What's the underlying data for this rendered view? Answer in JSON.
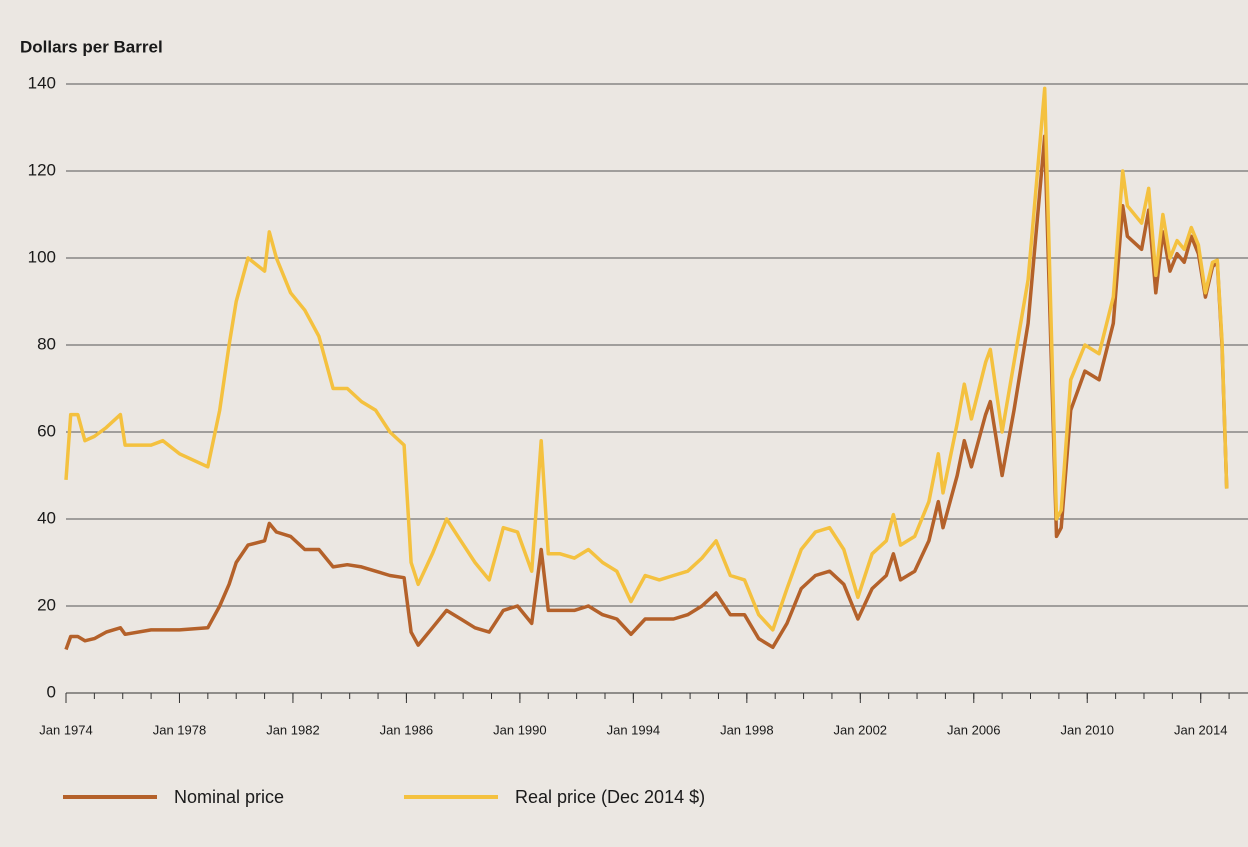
{
  "chart_data": {
    "type": "line",
    "title": "Dollars per Barrel",
    "x": [
      "Jan 1974",
      "Mar 1974",
      "Jun 1974",
      "Sep 1974",
      "Jan 1975",
      "Jun 1975",
      "Dec 1975",
      "Feb 1976",
      "Jan 1977",
      "Jun 1977",
      "Jan 1978",
      "Jan 1979",
      "Jun 1979",
      "Oct 1979",
      "Jan 1980",
      "Jun 1980",
      "Jan 1981",
      "Mar 1981",
      "Jun 1981",
      "Dec 1981",
      "Jun 1982",
      "Dec 1982",
      "Jun 1983",
      "Dec 1983",
      "Jun 1984",
      "Dec 1984",
      "Jun 1985",
      "Dec 1985",
      "Mar 1986",
      "Jun 1986",
      "Dec 1986",
      "Jun 1987",
      "Dec 1987",
      "Jun 1988",
      "Dec 1988",
      "Jun 1989",
      "Dec 1989",
      "Jun 1990",
      "Oct 1990",
      "Jan 1991",
      "Jun 1991",
      "Dec 1991",
      "Jun 1992",
      "Dec 1992",
      "Jun 1993",
      "Dec 1993",
      "Jun 1994",
      "Dec 1994",
      "Jun 1995",
      "Dec 1995",
      "Jun 1996",
      "Dec 1996",
      "Jun 1997",
      "Dec 1997",
      "Jun 1998",
      "Dec 1998",
      "Jun 1999",
      "Dec 1999",
      "Jun 2000",
      "Dec 2000",
      "Jun 2001",
      "Dec 2001",
      "Jun 2002",
      "Dec 2002",
      "Mar 2003",
      "Jun 2003",
      "Dec 2003",
      "Jun 2004",
      "Oct 2004",
      "Dec 2004",
      "Jun 2005",
      "Sep 2005",
      "Dec 2005",
      "Jun 2006",
      "Aug 2006",
      "Jan 2007",
      "Jun 2007",
      "Dec 2007",
      "Jul 2008",
      "Dec 2008",
      "Feb 2009",
      "Jun 2009",
      "Dec 2009",
      "Jun 2010",
      "Dec 2010",
      "Apr 2011",
      "Jun 2011",
      "Dec 2011",
      "Mar 2012",
      "Jun 2012",
      "Sep 2012",
      "Dec 2012",
      "Mar 2013",
      "Jun 2013",
      "Sep 2013",
      "Dec 2013",
      "Mar 2014",
      "Jun 2014",
      "Aug 2014",
      "Oct 2014",
      "Dec 2014"
    ],
    "series": [
      {
        "name": "Nominal price",
        "color": "#b4612a",
        "values": [
          10,
          13,
          13,
          12,
          12.5,
          14,
          15,
          13.5,
          14.5,
          14.5,
          14.5,
          15,
          20,
          25,
          30,
          34,
          35,
          39,
          37,
          36,
          33,
          33,
          29,
          29.5,
          29,
          28,
          27,
          26.5,
          14,
          11,
          15,
          19,
          17,
          15,
          14,
          19,
          20,
          16,
          33,
          19,
          19,
          19,
          20,
          18,
          17,
          13.5,
          17,
          17,
          17,
          18,
          20,
          23,
          18,
          18,
          12.5,
          10.5,
          16,
          24,
          27,
          28,
          25,
          17,
          24,
          27,
          32,
          26,
          28,
          35,
          44,
          38,
          50,
          58,
          52,
          64,
          67,
          50,
          65,
          85,
          128,
          36,
          38,
          65,
          74,
          72,
          85,
          112,
          105,
          102,
          111,
          92,
          106,
          97,
          101,
          99,
          105,
          101,
          91,
          98,
          99,
          80,
          47
        ]
      },
      {
        "name": "Real price (Dec 2014 $)",
        "color": "#f4c13f",
        "values": [
          49,
          64,
          64,
          58,
          59,
          61,
          64,
          57,
          57,
          58,
          55,
          52,
          65,
          80,
          90,
          100,
          97,
          106,
          100,
          92,
          88,
          82,
          70,
          70,
          67,
          65,
          60,
          57,
          30,
          25,
          32,
          40,
          35,
          30,
          26,
          38,
          37,
          28,
          58,
          32,
          32,
          31,
          33,
          30,
          28,
          21,
          27,
          26,
          27,
          28,
          31,
          35,
          27,
          26,
          18,
          14.5,
          24,
          33,
          37,
          38,
          33,
          22,
          32,
          35,
          41,
          34,
          36,
          44,
          55,
          46,
          62,
          71,
          63,
          76,
          79,
          60,
          76,
          95,
          139,
          40,
          42,
          72,
          80,
          78,
          91,
          120,
          112,
          108,
          116,
          96,
          110,
          100,
          104,
          102,
          107,
          103,
          92,
          99,
          99.5,
          81,
          47
        ]
      }
    ],
    "xlim": [
      "Jan 1974",
      "Sep 2015"
    ],
    "xticks": [
      "Jan 1974",
      "Jan 1978",
      "Jan 1982",
      "Jan 1986",
      "Jan 1990",
      "Jan 1994",
      "Jan 1998",
      "Jan 2002",
      "Jan 2006",
      "Jan 2010",
      "Jan 2014"
    ],
    "ylim": [
      0,
      140
    ],
    "yticks": [
      0,
      20,
      40,
      60,
      80,
      100,
      120,
      140
    ],
    "grid": true,
    "legend": "bottom"
  }
}
